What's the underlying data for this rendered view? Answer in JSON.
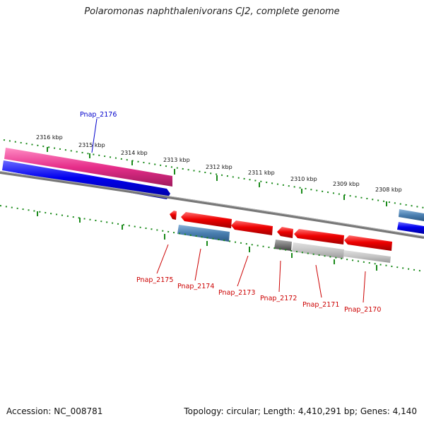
{
  "title": "Polaromonas naphthalenivorans CJ2, complete genome",
  "footer": {
    "accession": "Accession: NC_008781",
    "summary": "Topology: circular; Length: 4,410,291 bp; Genes: 4,140"
  },
  "colors": {
    "scale_ticks": "#1a8a1a",
    "cds_forward": "#ee0000",
    "gene_blue": "#0000ee",
    "gene_magenta": "#e62e8a",
    "gene_steel": "#4a7fb0",
    "gene_gray": "#777777",
    "genome_line": "#888888",
    "top_label": "#0000cc",
    "bottom_label": "#cc0000"
  },
  "scale_labels": [
    "2316 kbp",
    "2315 kbp",
    "2314 kbp",
    "2313 kbp",
    "2312 kbp",
    "2311 kbp",
    "2310 kbp",
    "2309 kbp",
    "2308 kbp"
  ],
  "top_genes": [
    "Pnap_2176"
  ],
  "bottom_genes": [
    "Pnap_2175",
    "Pnap_2174",
    "Pnap_2173",
    "Pnap_2172",
    "Pnap_2171",
    "Pnap_2170"
  ]
}
